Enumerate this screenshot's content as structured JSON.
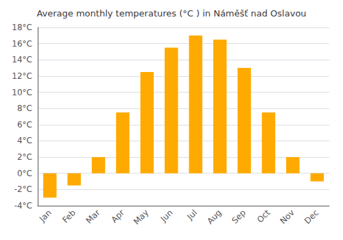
{
  "chart_data": {
    "type": "bar",
    "title": "Average monthly temperatures (°C ) in Náměšť nad Oslavou",
    "categories": [
      "Jan",
      "Feb",
      "Mar",
      "Apr",
      "May",
      "Jun",
      "Jul",
      "Aug",
      "Sep",
      "Oct",
      "Nov",
      "Dec"
    ],
    "values": [
      -3.0,
      -1.5,
      2.0,
      7.5,
      12.5,
      15.5,
      17.0,
      16.5,
      13.0,
      7.5,
      2.0,
      -1.0
    ],
    "color": "#FFAA00",
    "ylim": [
      -4,
      18
    ],
    "yticks": [
      {
        "value": -4,
        "label": "-4°C"
      },
      {
        "value": -2,
        "label": "-2°C"
      },
      {
        "value": 0,
        "label": "0°C"
      },
      {
        "value": 2,
        "label": "2°C"
      },
      {
        "value": 4,
        "label": "4°C"
      },
      {
        "value": 6,
        "label": "6°C"
      },
      {
        "value": 8,
        "label": "8°C"
      },
      {
        "value": 10,
        "label": "10°C"
      },
      {
        "value": 12,
        "label": "12°C"
      },
      {
        "value": 14,
        "label": "14°C"
      },
      {
        "value": 16,
        "label": "16°C"
      },
      {
        "value": 18,
        "label": "18°C"
      }
    ],
    "grid": true
  }
}
